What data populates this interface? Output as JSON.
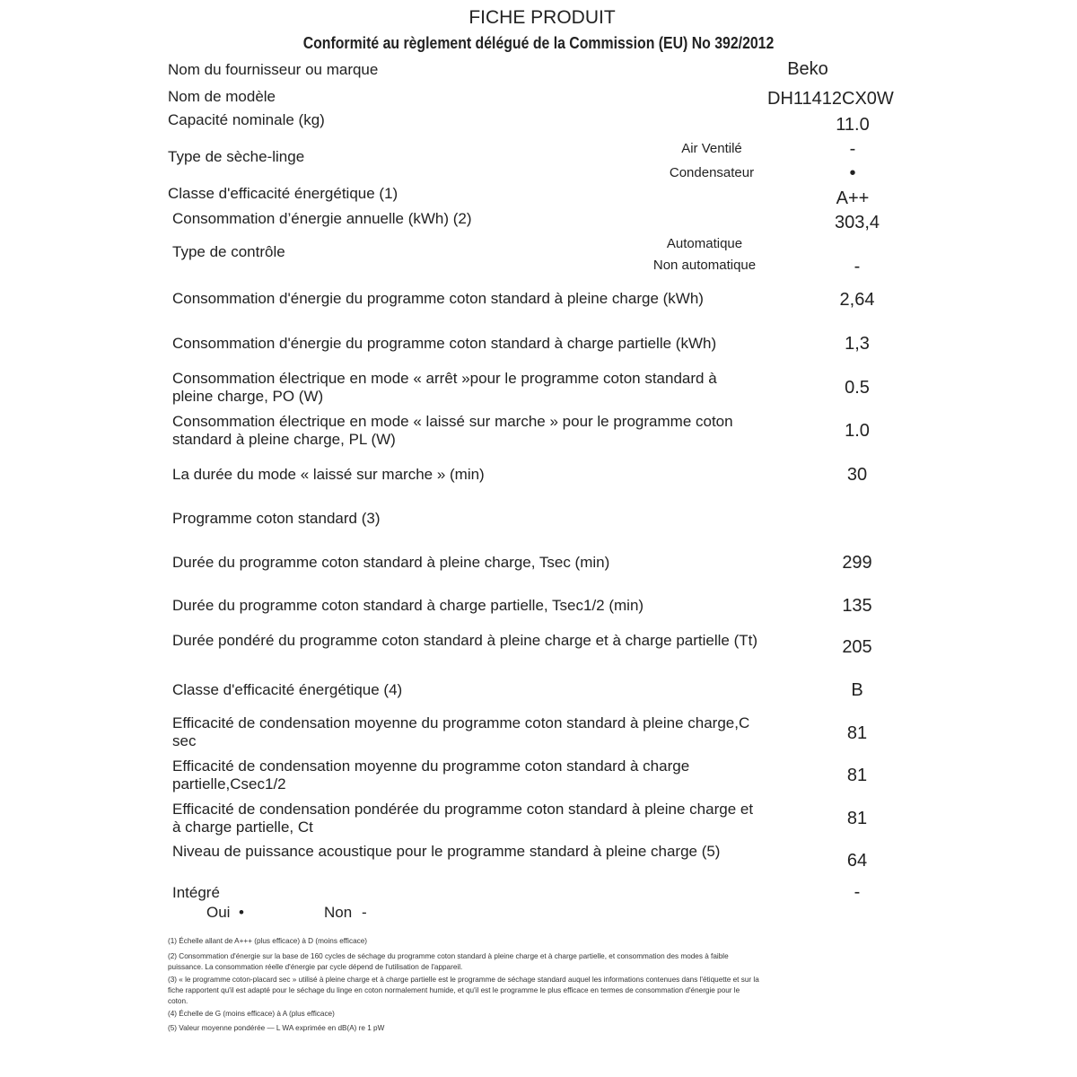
{
  "header": {
    "title": "FICHE PRODUIT",
    "subtitle": "Conformité au règlement délégué de la Commission (EU) No 392/2012"
  },
  "rows": [
    {
      "label": "Nom du fournisseur ou marque",
      "value": "Beko"
    },
    {
      "label": "Nom de modèle",
      "value": "DH11412CX0W"
    },
    {
      "label": "Capacité nominale (kg)",
      "value": "11.0"
    },
    {
      "label": "Type de sèche-linge",
      "options": [
        {
          "label": "Air Ventilé",
          "value": "-"
        },
        {
          "label": "Condensateur",
          "value": "•"
        }
      ]
    },
    {
      "label": "Classe d'efficacité énergétique (1)",
      "value": "A++"
    },
    {
      "label": "Consommation d’énergie annuelle (kWh) (2)",
      "value": "303,4"
    },
    {
      "label": "Type de contrôle",
      "options": [
        {
          "label": "Automatique",
          "value": ""
        },
        {
          "label": "Non automatique",
          "value": "-"
        }
      ]
    },
    {
      "label": "Consommation d'énergie du programme coton standard à pleine charge (kWh)",
      "value": "2,64"
    },
    {
      "label": "Consommation d'énergie du programme coton standard à charge partielle (kWh)",
      "value": "1,3"
    },
    {
      "label": "Consommation électrique en mode « arrêt »pour le programme coton standard à pleine charge, PO (W)",
      "value": "0.5"
    },
    {
      "label": "Consommation électrique en mode « laissé sur marche » pour le programme coton standard à pleine charge, PL (W)",
      "value": "1.0"
    },
    {
      "label": "La durée du mode « laissé sur marche » (min)",
      "value": "30"
    },
    {
      "label": "Programme coton standard (3)",
      "value": ""
    },
    {
      "label": "Durée du programme coton standard à pleine charge, Tsec (min)",
      "value": "299"
    },
    {
      "label": "Durée du programme coton standard à charge partielle, Tsec1/2 (min)",
      "value": "135"
    },
    {
      "label": "Durée pondéré du programme coton standard à pleine charge et à charge partielle (Tt)",
      "value": "205"
    },
    {
      "label": "Classe d'efficacité énergétique (4)",
      "value": "B"
    },
    {
      "label": "Efficacité de condensation moyenne du programme coton standard à pleine charge,C sec",
      "value": "81"
    },
    {
      "label": "Efficacité de condensation moyenne du programme coton standard à charge partielle,Csec1/2",
      "value": "81"
    },
    {
      "label": "Efficacité de condensation pondérée du programme coton standard à pleine charge et à charge partielle, Ct",
      "value": "81"
    },
    {
      "label": "Niveau de puissance acoustique pour le programme standard à pleine charge (5)",
      "value": "64"
    },
    {
      "label": "Intégré",
      "value": "-",
      "options": [
        {
          "label": "Oui",
          "value": "•"
        },
        {
          "label": "Non",
          "value": "-"
        }
      ]
    }
  ],
  "footnotes": [
    "(1) Échelle allant de A+++ (plus efficace) à D (moins efficace)",
    "(2) Consommation d'énergie sur la base de 160 cycles de séchage du programme coton standard à pleine charge et à charge partielle, et consommation des modes à faible puissance. La consommation réelle d'énergie par cycle dépend de l'utilisation de l'appareil.",
    "(3) « le programme coton-placard sec » utilisé à pleine charge et à charge partielle est le programme de séchage standard auquel les informations contenues dans l'étiquette et sur la fiche rapportent qu'il est adapté pour le séchage du linge en coton normalement humide, et qu'il est le programme le plus efficace en termes de consommation d'énergie pour le coton.",
    "(4) Échelle de G (moins efficace) à A (plus efficace)",
    "(5) Valeur moyenne pondérée — L WA exprimée en dB(A) re 1 pW"
  ]
}
